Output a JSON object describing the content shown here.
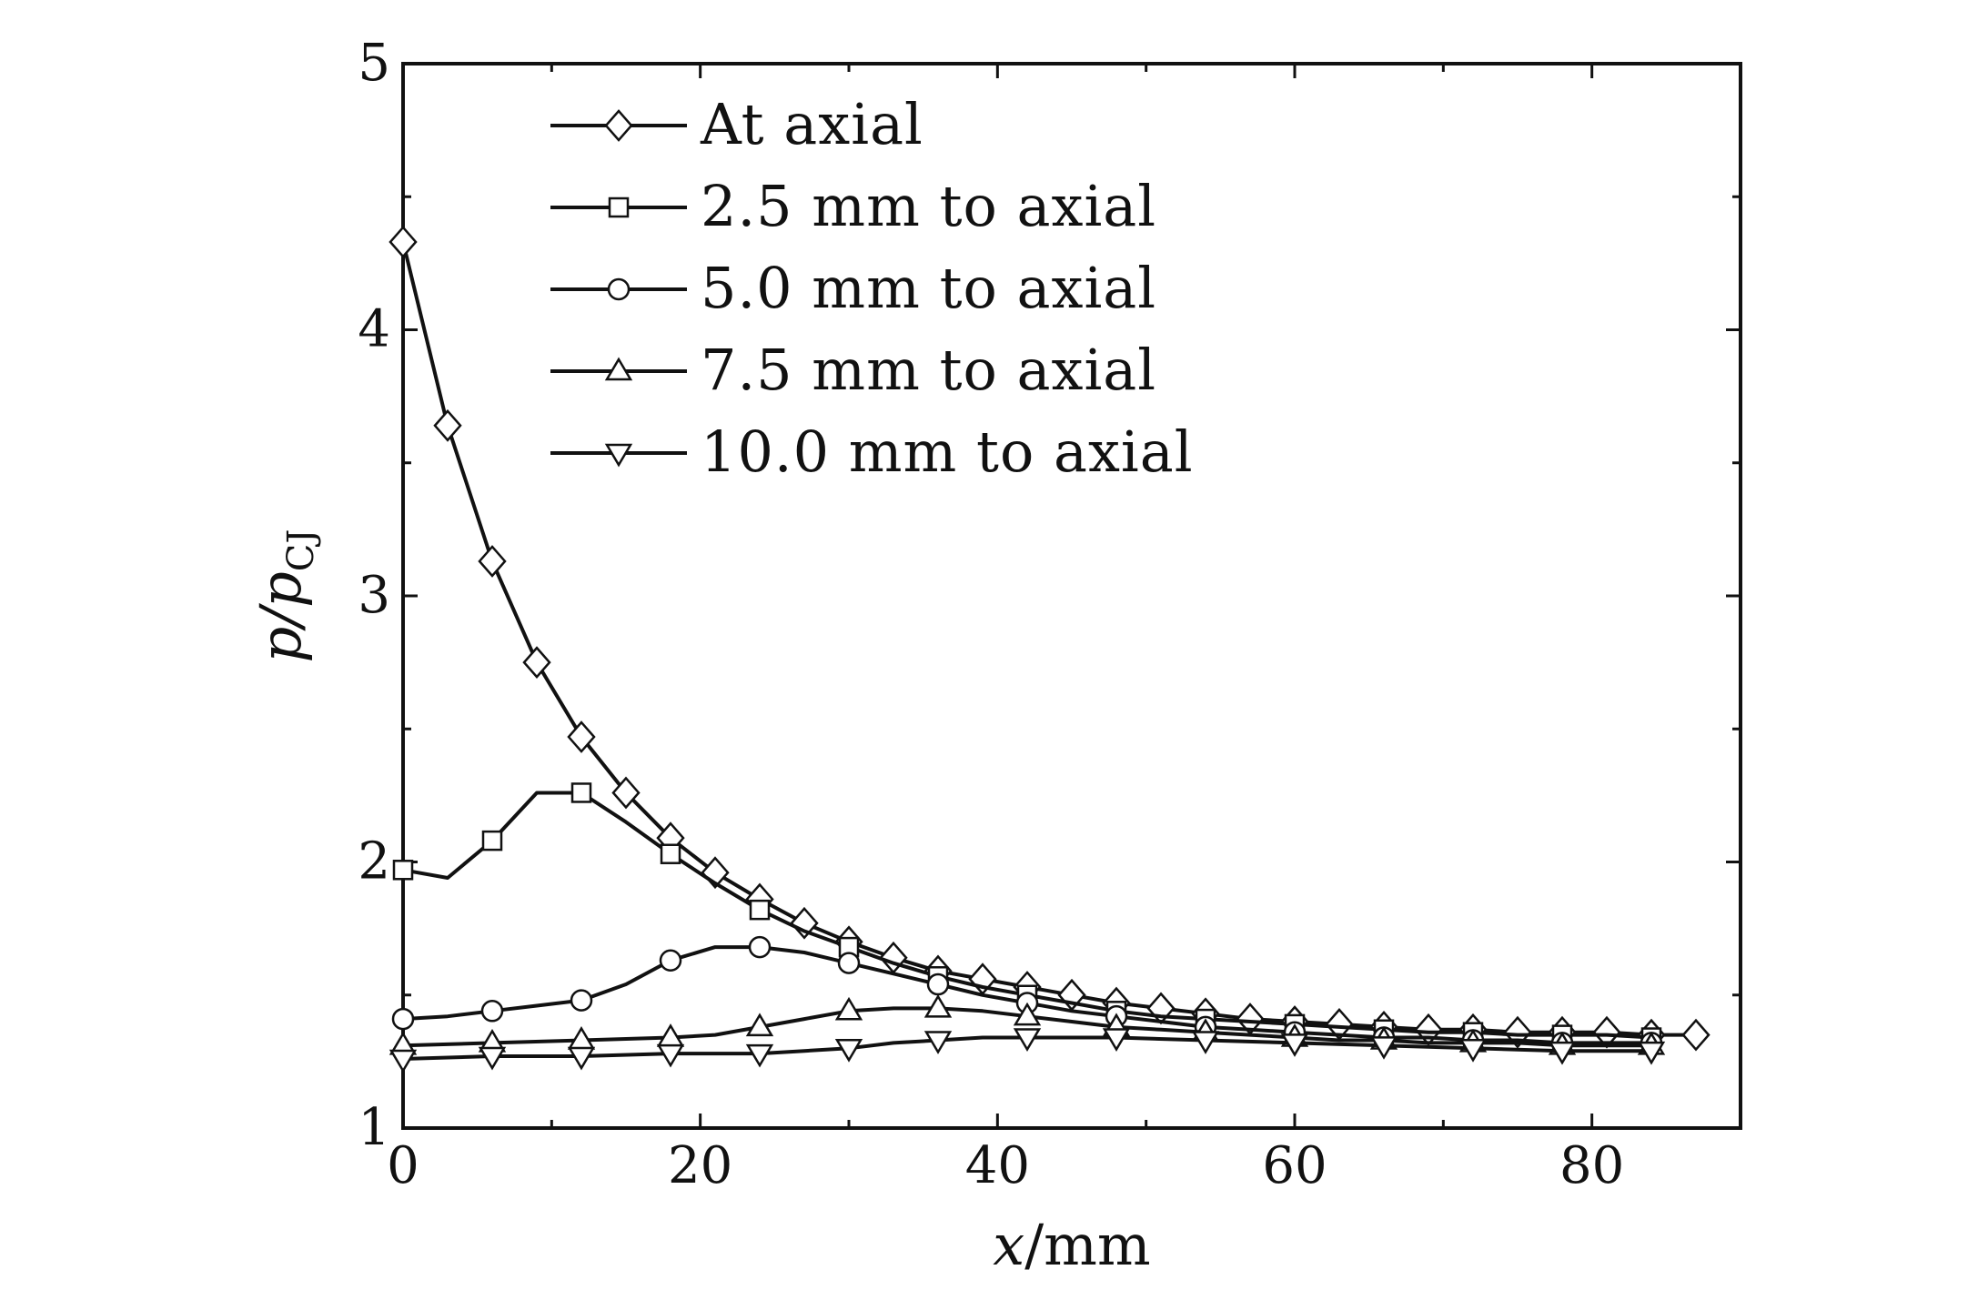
{
  "chart_data": {
    "type": "line",
    "xlabel": {
      "var": "x",
      "unit": "/mm"
    },
    "ylabel": {
      "base": "p/p",
      "sub": "CJ"
    },
    "xlim": [
      0,
      90
    ],
    "ylim": [
      1,
      5
    ],
    "xticks": [
      0,
      20,
      40,
      60,
      80
    ],
    "yticks": [
      1,
      2,
      3,
      4,
      5
    ],
    "grid": false,
    "legend_position": "top-left",
    "series": [
      {
        "name": "At axial",
        "marker": "diamond",
        "line": [
          [
            0,
            4.33
          ],
          [
            3,
            3.64
          ],
          [
            6,
            3.13
          ],
          [
            9,
            2.75
          ],
          [
            12,
            2.47
          ],
          [
            15,
            2.26
          ],
          [
            18,
            2.09
          ],
          [
            21,
            1.96
          ],
          [
            24,
            1.86
          ],
          [
            27,
            1.77
          ],
          [
            30,
            1.7
          ],
          [
            33,
            1.64
          ],
          [
            36,
            1.59
          ],
          [
            39,
            1.56
          ],
          [
            42,
            1.53
          ],
          [
            45,
            1.5
          ],
          [
            48,
            1.47
          ],
          [
            51,
            1.45
          ],
          [
            54,
            1.43
          ],
          [
            57,
            1.41
          ],
          [
            60,
            1.4
          ],
          [
            63,
            1.39
          ],
          [
            66,
            1.38
          ],
          [
            69,
            1.37
          ],
          [
            72,
            1.37
          ],
          [
            75,
            1.36
          ],
          [
            78,
            1.36
          ],
          [
            81,
            1.36
          ],
          [
            84,
            1.35
          ],
          [
            87,
            1.35
          ]
        ],
        "markers": [
          [
            0,
            4.33
          ],
          [
            3,
            3.64
          ],
          [
            6,
            3.13
          ],
          [
            9,
            2.75
          ],
          [
            12,
            2.47
          ],
          [
            15,
            2.26
          ],
          [
            18,
            2.09
          ],
          [
            21,
            1.96
          ],
          [
            24,
            1.86
          ],
          [
            27,
            1.77
          ],
          [
            30,
            1.7
          ],
          [
            33,
            1.64
          ],
          [
            36,
            1.59
          ],
          [
            39,
            1.56
          ],
          [
            42,
            1.53
          ],
          [
            45,
            1.5
          ],
          [
            48,
            1.47
          ],
          [
            51,
            1.45
          ],
          [
            54,
            1.43
          ],
          [
            57,
            1.41
          ],
          [
            60,
            1.4
          ],
          [
            63,
            1.39
          ],
          [
            66,
            1.38
          ],
          [
            69,
            1.37
          ],
          [
            72,
            1.37
          ],
          [
            75,
            1.36
          ],
          [
            78,
            1.36
          ],
          [
            81,
            1.36
          ],
          [
            84,
            1.35
          ],
          [
            87,
            1.35
          ]
        ]
      },
      {
        "name": "2.5 mm to axial",
        "marker": "square",
        "line": [
          [
            0,
            1.97
          ],
          [
            3,
            1.94
          ],
          [
            6,
            2.08
          ],
          [
            9,
            2.26
          ],
          [
            12,
            2.26
          ],
          [
            15,
            2.15
          ],
          [
            18,
            2.03
          ],
          [
            21,
            1.92
          ],
          [
            24,
            1.82
          ],
          [
            27,
            1.74
          ],
          [
            30,
            1.68
          ],
          [
            33,
            1.62
          ],
          [
            36,
            1.57
          ],
          [
            39,
            1.53
          ],
          [
            42,
            1.5
          ],
          [
            45,
            1.47
          ],
          [
            48,
            1.44
          ],
          [
            51,
            1.42
          ],
          [
            54,
            1.41
          ],
          [
            57,
            1.4
          ],
          [
            60,
            1.39
          ],
          [
            63,
            1.38
          ],
          [
            66,
            1.37
          ],
          [
            69,
            1.36
          ],
          [
            72,
            1.36
          ],
          [
            75,
            1.35
          ],
          [
            78,
            1.35
          ],
          [
            81,
            1.35
          ],
          [
            84,
            1.34
          ]
        ],
        "markers": [
          [
            0,
            1.97
          ],
          [
            6,
            2.08
          ],
          [
            12,
            2.26
          ],
          [
            18,
            2.03
          ],
          [
            24,
            1.82
          ],
          [
            30,
            1.68
          ],
          [
            36,
            1.57
          ],
          [
            42,
            1.5
          ],
          [
            48,
            1.44
          ],
          [
            54,
            1.41
          ],
          [
            60,
            1.39
          ],
          [
            66,
            1.37
          ],
          [
            72,
            1.36
          ],
          [
            78,
            1.35
          ],
          [
            84,
            1.34
          ]
        ]
      },
      {
        "name": "5.0 mm to axial",
        "marker": "circle",
        "line": [
          [
            0,
            1.41
          ],
          [
            3,
            1.42
          ],
          [
            6,
            1.44
          ],
          [
            9,
            1.46
          ],
          [
            12,
            1.48
          ],
          [
            15,
            1.54
          ],
          [
            18,
            1.63
          ],
          [
            21,
            1.68
          ],
          [
            24,
            1.68
          ],
          [
            27,
            1.66
          ],
          [
            30,
            1.62
          ],
          [
            33,
            1.58
          ],
          [
            36,
            1.54
          ],
          [
            39,
            1.5
          ],
          [
            42,
            1.47
          ],
          [
            45,
            1.44
          ],
          [
            48,
            1.42
          ],
          [
            51,
            1.4
          ],
          [
            54,
            1.38
          ],
          [
            57,
            1.37
          ],
          [
            60,
            1.36
          ],
          [
            63,
            1.35
          ],
          [
            66,
            1.34
          ],
          [
            69,
            1.34
          ],
          [
            72,
            1.33
          ],
          [
            75,
            1.33
          ],
          [
            78,
            1.32
          ],
          [
            81,
            1.32
          ],
          [
            84,
            1.32
          ]
        ],
        "markers": [
          [
            0,
            1.41
          ],
          [
            6,
            1.44
          ],
          [
            12,
            1.48
          ],
          [
            18,
            1.63
          ],
          [
            24,
            1.68
          ],
          [
            30,
            1.62
          ],
          [
            36,
            1.54
          ],
          [
            42,
            1.47
          ],
          [
            48,
            1.42
          ],
          [
            54,
            1.38
          ],
          [
            60,
            1.36
          ],
          [
            66,
            1.34
          ],
          [
            72,
            1.33
          ],
          [
            78,
            1.32
          ],
          [
            84,
            1.32
          ]
        ]
      },
      {
        "name": "7.5 mm to axial",
        "marker": "triangle-up",
        "line": [
          [
            0,
            1.31
          ],
          [
            6,
            1.32
          ],
          [
            12,
            1.33
          ],
          [
            18,
            1.34
          ],
          [
            21,
            1.35
          ],
          [
            24,
            1.38
          ],
          [
            27,
            1.41
          ],
          [
            30,
            1.44
          ],
          [
            33,
            1.45
          ],
          [
            36,
            1.45
          ],
          [
            39,
            1.44
          ],
          [
            42,
            1.42
          ],
          [
            45,
            1.4
          ],
          [
            48,
            1.38
          ],
          [
            51,
            1.37
          ],
          [
            54,
            1.36
          ],
          [
            57,
            1.35
          ],
          [
            60,
            1.34
          ],
          [
            63,
            1.33
          ],
          [
            66,
            1.33
          ],
          [
            69,
            1.32
          ],
          [
            72,
            1.32
          ],
          [
            75,
            1.32
          ],
          [
            78,
            1.31
          ],
          [
            81,
            1.31
          ],
          [
            84,
            1.31
          ]
        ],
        "markers": [
          [
            0,
            1.31
          ],
          [
            6,
            1.32
          ],
          [
            12,
            1.33
          ],
          [
            18,
            1.34
          ],
          [
            24,
            1.38
          ],
          [
            30,
            1.44
          ],
          [
            36,
            1.45
          ],
          [
            42,
            1.42
          ],
          [
            48,
            1.38
          ],
          [
            54,
            1.36
          ],
          [
            60,
            1.34
          ],
          [
            66,
            1.33
          ],
          [
            72,
            1.32
          ],
          [
            78,
            1.31
          ],
          [
            84,
            1.31
          ]
        ]
      },
      {
        "name": "10.0 mm to axial",
        "marker": "triangle-down",
        "line": [
          [
            0,
            1.26
          ],
          [
            6,
            1.27
          ],
          [
            12,
            1.27
          ],
          [
            18,
            1.28
          ],
          [
            24,
            1.28
          ],
          [
            27,
            1.29
          ],
          [
            30,
            1.3
          ],
          [
            33,
            1.32
          ],
          [
            36,
            1.33
          ],
          [
            39,
            1.34
          ],
          [
            42,
            1.34
          ],
          [
            48,
            1.34
          ],
          [
            54,
            1.33
          ],
          [
            60,
            1.32
          ],
          [
            66,
            1.31
          ],
          [
            72,
            1.3
          ],
          [
            78,
            1.29
          ],
          [
            84,
            1.29
          ]
        ],
        "markers": [
          [
            0,
            1.26
          ],
          [
            6,
            1.27
          ],
          [
            12,
            1.27
          ],
          [
            18,
            1.28
          ],
          [
            24,
            1.28
          ],
          [
            30,
            1.3
          ],
          [
            36,
            1.33
          ],
          [
            42,
            1.34
          ],
          [
            48,
            1.34
          ],
          [
            54,
            1.33
          ],
          [
            60,
            1.32
          ],
          [
            66,
            1.31
          ],
          [
            72,
            1.3
          ],
          [
            78,
            1.29
          ],
          [
            84,
            1.29
          ]
        ]
      }
    ]
  }
}
